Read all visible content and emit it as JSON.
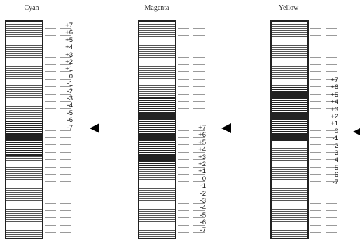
{
  "columns": [
    {
      "title": "Cyan",
      "labels": [
        "+7",
        "+6",
        "+5",
        "+4",
        "+3",
        "+2",
        "+1",
        "0",
        "-1",
        "-2",
        "-3",
        "-4",
        "-5",
        "-6",
        "-7"
      ],
      "selected": "-7"
    },
    {
      "title": "Magenta",
      "labels": [
        "+7",
        "+6",
        "+5",
        "+4",
        "+3",
        "+2",
        "+1",
        "0",
        "-1",
        "-2",
        "-3",
        "-4",
        "-5",
        "-6",
        "-7"
      ],
      "selected": "+7"
    },
    {
      "title": "Yellow",
      "labels": [
        "+7",
        "+6",
        "+5",
        "+4",
        "+3",
        "+2",
        "+1",
        "0",
        "-1",
        "-2",
        "-3",
        "-4",
        "-5",
        "-6",
        "-7"
      ],
      "selected": "0"
    }
  ]
}
